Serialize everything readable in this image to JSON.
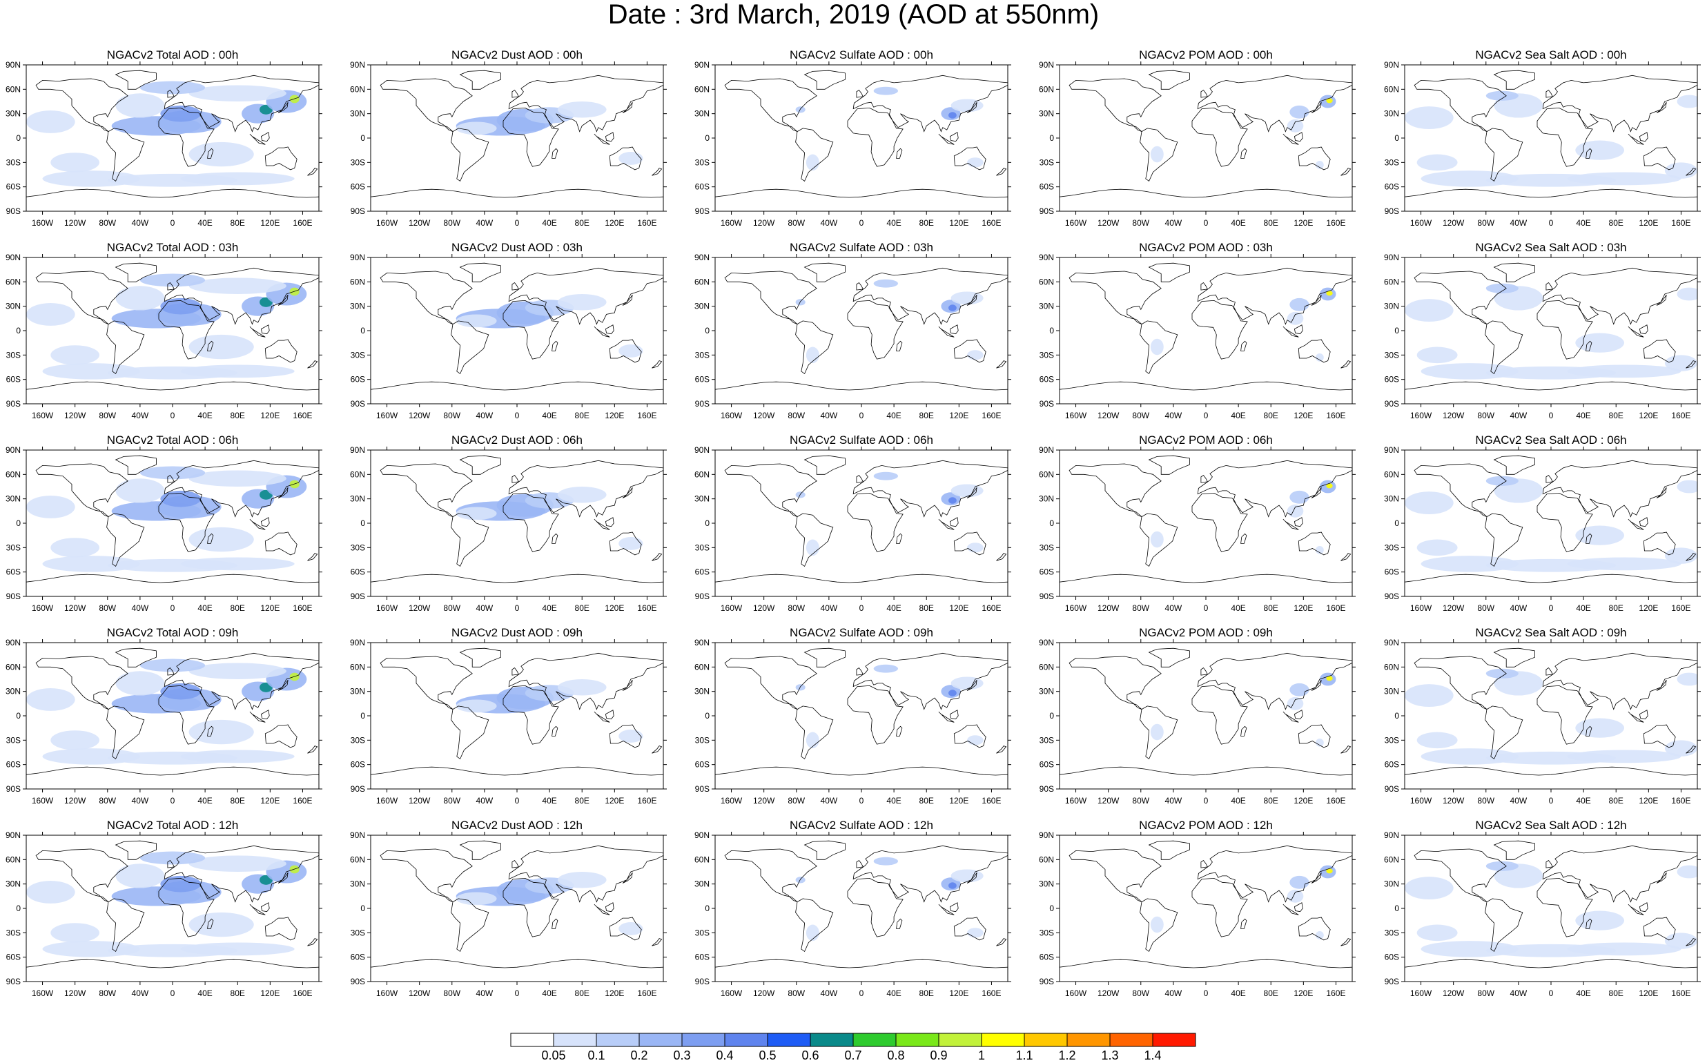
{
  "title": "Date : 3rd March, 2019 (AOD at 550nm)",
  "lat_labels": [
    "90N",
    "60N",
    "30N",
    "0",
    "30S",
    "60S",
    "90S"
  ],
  "lon_labels": [
    "160W",
    "120W",
    "80W",
    "40W",
    "0",
    "40E",
    "80E",
    "120E",
    "160E"
  ],
  "panels": [
    [
      {
        "title": "NGACv2 Total AOD : 00h",
        "species": "total"
      },
      {
        "title": "NGACv2 Dust AOD : 00h",
        "species": "dust"
      },
      {
        "title": "NGACv2 Sulfate AOD : 00h",
        "species": "sulfate"
      },
      {
        "title": "NGACv2 POM AOD : 00h",
        "species": "pom"
      },
      {
        "title": "NGACv2 Sea Salt AOD : 00h",
        "species": "seasalt"
      }
    ],
    [
      {
        "title": "NGACv2 Total AOD : 03h",
        "species": "total"
      },
      {
        "title": "NGACv2 Dust AOD : 03h",
        "species": "dust"
      },
      {
        "title": "NGACv2 Sulfate AOD : 03h",
        "species": "sulfate"
      },
      {
        "title": "NGACv2 POM AOD : 03h",
        "species": "pom"
      },
      {
        "title": "NGACv2 Sea Salt AOD : 03h",
        "species": "seasalt"
      }
    ],
    [
      {
        "title": "NGACv2 Total AOD : 06h",
        "species": "total"
      },
      {
        "title": "NGACv2 Dust AOD : 06h",
        "species": "dust"
      },
      {
        "title": "NGACv2 Sulfate AOD : 06h",
        "species": "sulfate"
      },
      {
        "title": "NGACv2 POM AOD : 06h",
        "species": "pom"
      },
      {
        "title": "NGACv2 Sea Salt AOD : 06h",
        "species": "seasalt"
      }
    ],
    [
      {
        "title": "NGACv2 Total AOD : 09h",
        "species": "total"
      },
      {
        "title": "NGACv2 Dust AOD : 09h",
        "species": "dust"
      },
      {
        "title": "NGACv2 Sulfate AOD : 09h",
        "species": "sulfate"
      },
      {
        "title": "NGACv2 POM AOD : 09h",
        "species": "pom"
      },
      {
        "title": "NGACv2 Sea Salt  AOD : 09h",
        "species": "seasalt"
      }
    ],
    [
      {
        "title": "NGACv2 Total AOD : 12h",
        "species": "total"
      },
      {
        "title": "NGACv2 Dust AOD : 12h",
        "species": "dust"
      },
      {
        "title": "NGACv2 Sulfate AOD : 12h",
        "species": "sulfate"
      },
      {
        "title": "NGACv2 POM  AOD : 12h",
        "species": "pom"
      },
      {
        "title": "NGACv2 Sea Salt AOD : 12h",
        "species": "seasalt"
      }
    ]
  ],
  "colorbar": {
    "labels": [
      "0.05",
      "0.1",
      "0.2",
      "0.3",
      "0.4",
      "0.5",
      "0.6",
      "0.7",
      "0.8",
      "0.9",
      "1",
      "1.1",
      "1.2",
      "1.3",
      "1.4"
    ],
    "colors": [
      "#ffffff",
      "#d7e3fb",
      "#b8cdf8",
      "#9ab6f5",
      "#7d9ef1",
      "#5f84ee",
      "#1e5cf5",
      "#0a8a8a",
      "#2ecb2e",
      "#7ae81a",
      "#c2f23a",
      "#ffff00",
      "#ffc800",
      "#ff9600",
      "#ff6400",
      "#ff1a00"
    ]
  },
  "chart_data": {
    "type": "heatmap",
    "description_rows": [
      "00h",
      "03h",
      "06h",
      "09h",
      "12h"
    ],
    "description_columns": [
      "Total",
      "Dust",
      "Sulfate",
      "POM",
      "Sea Salt"
    ],
    "levels": [
      0.05,
      0.1,
      0.2,
      0.3,
      0.4,
      0.5,
      0.6,
      0.7,
      0.8,
      0.9,
      1,
      1.1,
      1.2,
      1.3,
      1.4
    ],
    "xlim": [
      -180,
      180
    ],
    "ylim": [
      -90,
      90
    ]
  }
}
